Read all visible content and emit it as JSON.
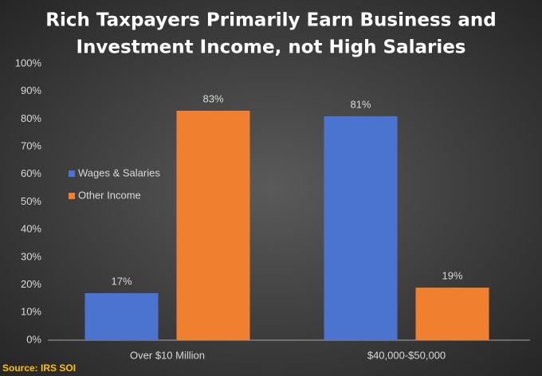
{
  "chart_data": {
    "type": "bar",
    "title": [
      "Rich Taxpayers Primarily Earn Business and",
      "Investment Income, not High Salaries"
    ],
    "categories": [
      "Over $10 Million",
      "$40,000-$50,000"
    ],
    "series": [
      {
        "name": "Wages & Salaries",
        "color": "#4a74cf",
        "values": [
          17,
          81
        ],
        "value_labels": [
          "17%",
          "81%"
        ]
      },
      {
        "name": "Other Income",
        "color": "#f08030",
        "values": [
          83,
          19
        ],
        "value_labels": [
          "83%",
          "19%"
        ]
      }
    ],
    "ylim": [
      0,
      100
    ],
    "yticks": [
      {
        "value": 0,
        "label": "0%"
      },
      {
        "value": 10,
        "label": "10%"
      },
      {
        "value": 20,
        "label": "20%"
      },
      {
        "value": 30,
        "label": "30%"
      },
      {
        "value": 40,
        "label": "40%"
      },
      {
        "value": 50,
        "label": "50%"
      },
      {
        "value": 60,
        "label": "60%"
      },
      {
        "value": 70,
        "label": "70%"
      },
      {
        "value": 80,
        "label": "80%"
      },
      {
        "value": 90,
        "label": "90%"
      },
      {
        "value": 100,
        "label": "100%"
      }
    ],
    "grid": false,
    "legend": "left",
    "source": "Source: IRS SOI"
  }
}
